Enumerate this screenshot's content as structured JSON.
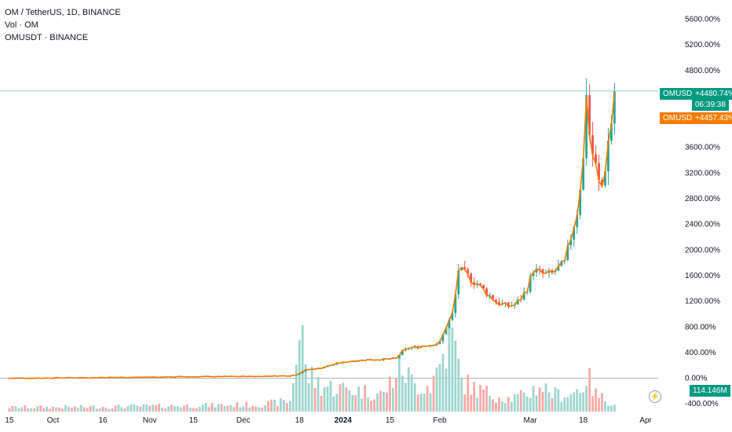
{
  "legend": {
    "line1": "OM / TetherUS, 1D, BINANCE",
    "line2": "Vol · OM",
    "line3": "OMUSDT · BINANCE"
  },
  "price_tags": {
    "main_label": "OMUSDT",
    "main_value": "+4480.74%",
    "countdown": "06:39:38",
    "compare_label": "OMUSDT",
    "compare_value": "+4457.43%",
    "volume_value": "114.146M",
    "main_color": "#089981",
    "compare_color": "#f57c00"
  },
  "colors": {
    "up": "#26a69a",
    "down": "#ef5350",
    "vol_up": "#9ed6cf",
    "vol_down": "#f7a9a7",
    "compare_line": "#f57c00",
    "last_price_line": "#8fd3c8"
  },
  "chart_data": {
    "type": "candlestick",
    "y_axis": {
      "unit": "%",
      "ticks": [
        "5600.00%",
        "5200.00%",
        "4800.00%",
        "4400.00%",
        "4000.00%",
        "3600.00%",
        "3200.00%",
        "2800.00%",
        "2400.00%",
        "2000.00%",
        "1600.00%",
        "1200.00%",
        "800.00%",
        "400.00%",
        "0.00%",
        "-400.00%"
      ],
      "tick_values": [
        5600,
        5200,
        4800,
        4400,
        4000,
        3600,
        3200,
        2800,
        2400,
        2000,
        1600,
        1200,
        800,
        400,
        0,
        -400
      ],
      "range": [
        -520,
        5900
      ]
    },
    "x_axis": {
      "labels": [
        "15",
        "Oct",
        "16",
        "Nov",
        "15",
        "Dec",
        "18",
        "2024",
        "15",
        "Feb",
        "Mar",
        "18",
        "Apr"
      ],
      "label_days": [
        0,
        14,
        30,
        45,
        59,
        75,
        93,
        107,
        122,
        138,
        167,
        184,
        204
      ],
      "bold": [
        "2024"
      ],
      "range_days": [
        -3,
        208
      ]
    },
    "series": [
      {
        "name": "OMUSDT",
        "kind": "candles",
        "last_value": 4480.74
      },
      {
        "name": "OMUSDT · BINANCE",
        "kind": "line",
        "last_value": 4457.43
      }
    ],
    "price_path": [
      [
        0,
        0
      ],
      [
        20,
        8
      ],
      [
        40,
        15
      ],
      [
        60,
        25
      ],
      [
        80,
        30
      ],
      [
        90,
        40
      ],
      [
        92,
        55
      ],
      [
        95,
        130
      ],
      [
        100,
        160
      ],
      [
        105,
        230
      ],
      [
        110,
        270
      ],
      [
        115,
        290
      ],
      [
        120,
        295
      ],
      [
        124,
        310
      ],
      [
        126,
        420
      ],
      [
        128,
        470
      ],
      [
        132,
        500
      ],
      [
        136,
        530
      ],
      [
        138,
        560
      ],
      [
        140,
        800
      ],
      [
        142,
        1000
      ],
      [
        143,
        1300
      ],
      [
        144,
        1700
      ],
      [
        146,
        1640
      ],
      [
        148,
        1550
      ],
      [
        150,
        1480
      ],
      [
        152,
        1380
      ],
      [
        154,
        1290
      ],
      [
        156,
        1200
      ],
      [
        158,
        1150
      ],
      [
        160,
        1130
      ],
      [
        162,
        1150
      ],
      [
        164,
        1250
      ],
      [
        166,
        1400
      ],
      [
        168,
        1700
      ],
      [
        170,
        1650
      ],
      [
        172,
        1620
      ],
      [
        174,
        1640
      ],
      [
        176,
        1720
      ],
      [
        178,
        1800
      ],
      [
        180,
        2200
      ],
      [
        182,
        2600
      ],
      [
        184,
        3400
      ],
      [
        185,
        4500
      ],
      [
        186,
        3800
      ],
      [
        187,
        3500
      ],
      [
        188,
        3300
      ],
      [
        189,
        3050
      ],
      [
        190,
        3000
      ],
      [
        191,
        3300
      ],
      [
        192,
        3700
      ],
      [
        193,
        4000
      ],
      [
        194,
        4480
      ]
    ],
    "volume_path": [
      [
        0,
        0.05
      ],
      [
        20,
        0.05
      ],
      [
        40,
        0.06
      ],
      [
        60,
        0.07
      ],
      [
        80,
        0.08
      ],
      [
        90,
        0.12
      ],
      [
        93,
        0.9
      ],
      [
        94,
        1.0
      ],
      [
        95,
        0.45
      ],
      [
        100,
        0.3
      ],
      [
        110,
        0.25
      ],
      [
        120,
        0.2
      ],
      [
        124,
        0.45
      ],
      [
        126,
        0.5
      ],
      [
        130,
        0.3
      ],
      [
        135,
        0.3
      ],
      [
        138,
        0.55
      ],
      [
        140,
        0.75
      ],
      [
        142,
        0.85
      ],
      [
        145,
        0.35
      ],
      [
        150,
        0.25
      ],
      [
        155,
        0.2
      ],
      [
        160,
        0.15
      ],
      [
        165,
        0.18
      ],
      [
        170,
        0.3
      ],
      [
        175,
        0.2
      ],
      [
        180,
        0.2
      ],
      [
        184,
        0.3
      ],
      [
        185,
        0.42
      ],
      [
        186,
        0.35
      ],
      [
        188,
        0.2
      ],
      [
        192,
        0.12
      ],
      [
        194,
        0.08
      ]
    ],
    "volume_max_fraction": 1.0
  }
}
